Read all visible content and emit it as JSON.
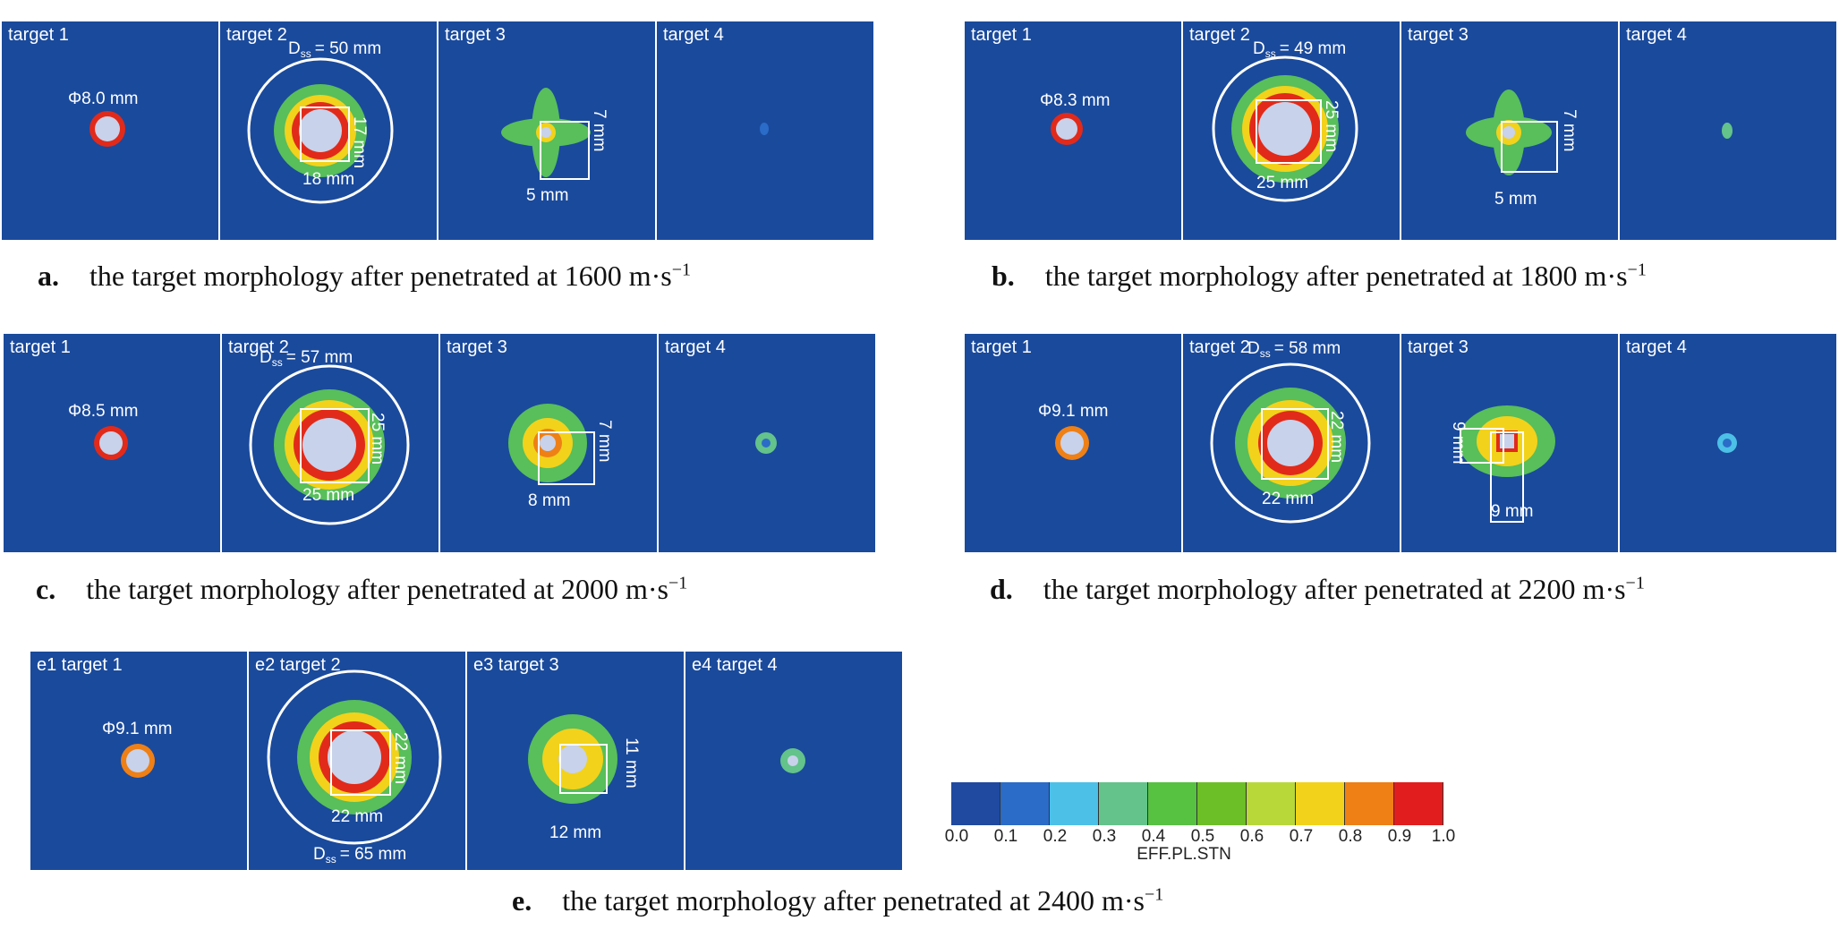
{
  "figures": [
    {
      "caption_key": "a.",
      "caption_text": "the target morphology after penetrated at 1600 m·s",
      "caption_exp": "−1",
      "panels": [
        {
          "label": "target 1",
          "annot": "Φ8.0 mm"
        },
        {
          "label": "target 2",
          "annot_dss": "= 50 mm",
          "dim_v": "17 mm",
          "dim_h": "18 mm"
        },
        {
          "label": "target 3",
          "dim_v": "7 mm",
          "dim_h": "5 mm"
        },
        {
          "label": "target 4"
        }
      ]
    },
    {
      "caption_key": "b.",
      "caption_text": "the target morphology after penetrated at 1800 m·s",
      "caption_exp": "−1",
      "panels": [
        {
          "label": "target 1",
          "annot": "Φ8.3 mm"
        },
        {
          "label": "target 2",
          "annot_dss": "= 49 mm",
          "dim_v": "25 mm",
          "dim_h": "25 mm"
        },
        {
          "label": "target 3",
          "dim_v": "7 mm",
          "dim_h": "5 mm"
        },
        {
          "label": "target 4"
        }
      ]
    },
    {
      "caption_key": "c.",
      "caption_text": "the target morphology after penetrated at 2000 m·s",
      "caption_exp": "−1",
      "panels": [
        {
          "label": "target 1",
          "annot": "Φ8.5 mm"
        },
        {
          "label": "target 2",
          "annot_dss": "= 57 mm",
          "dim_v": "25 mm",
          "dim_h": "25 mm"
        },
        {
          "label": "target 3",
          "dim_v": "7 mm",
          "dim_h": "8 mm"
        },
        {
          "label": "target 4"
        }
      ]
    },
    {
      "caption_key": "d.",
      "caption_text": "the target morphology after penetrated at 2200 m·s",
      "caption_exp": "−1",
      "panels": [
        {
          "label": "target 1",
          "annot": "Φ9.1 mm"
        },
        {
          "label": "target 2",
          "annot_dss": "= 58 mm",
          "dim_v": "22 mm",
          "dim_h": "22 mm"
        },
        {
          "label": "target 3",
          "dim_v": "9 mm",
          "dim_h": "9 mm"
        },
        {
          "label": "target 4"
        }
      ]
    },
    {
      "caption_key": "e.",
      "caption_text": "the target morphology after penetrated at 2400 m·s",
      "caption_exp": "−1",
      "panels": [
        {
          "label": "e1 target 1",
          "annot": "Φ9.1 mm"
        },
        {
          "label": "e2 target 2",
          "annot_dss": "= 65 mm",
          "dim_v": "22 mm",
          "dim_h": "22 mm"
        },
        {
          "label": "e3 target 3",
          "dim_v": "11 mm",
          "dim_h": "12 mm"
        },
        {
          "label": "e4 target 4"
        }
      ]
    }
  ],
  "dss_symbol": "D",
  "dss_sub": "ss",
  "colorbar": {
    "title": "EFF.PL.STN",
    "ticks": [
      "0.0",
      "0.1",
      "0.2",
      "0.3",
      "0.4",
      "0.5",
      "0.6",
      "0.7",
      "0.8",
      "0.9",
      "1.0"
    ],
    "colors": [
      "#1f4aa0",
      "#2a6cc8",
      "#4cc0e6",
      "#63c38a",
      "#57c142",
      "#6cbf26",
      "#b8d83a",
      "#f2d21b",
      "#ee8016",
      "#e21d1d"
    ]
  }
}
